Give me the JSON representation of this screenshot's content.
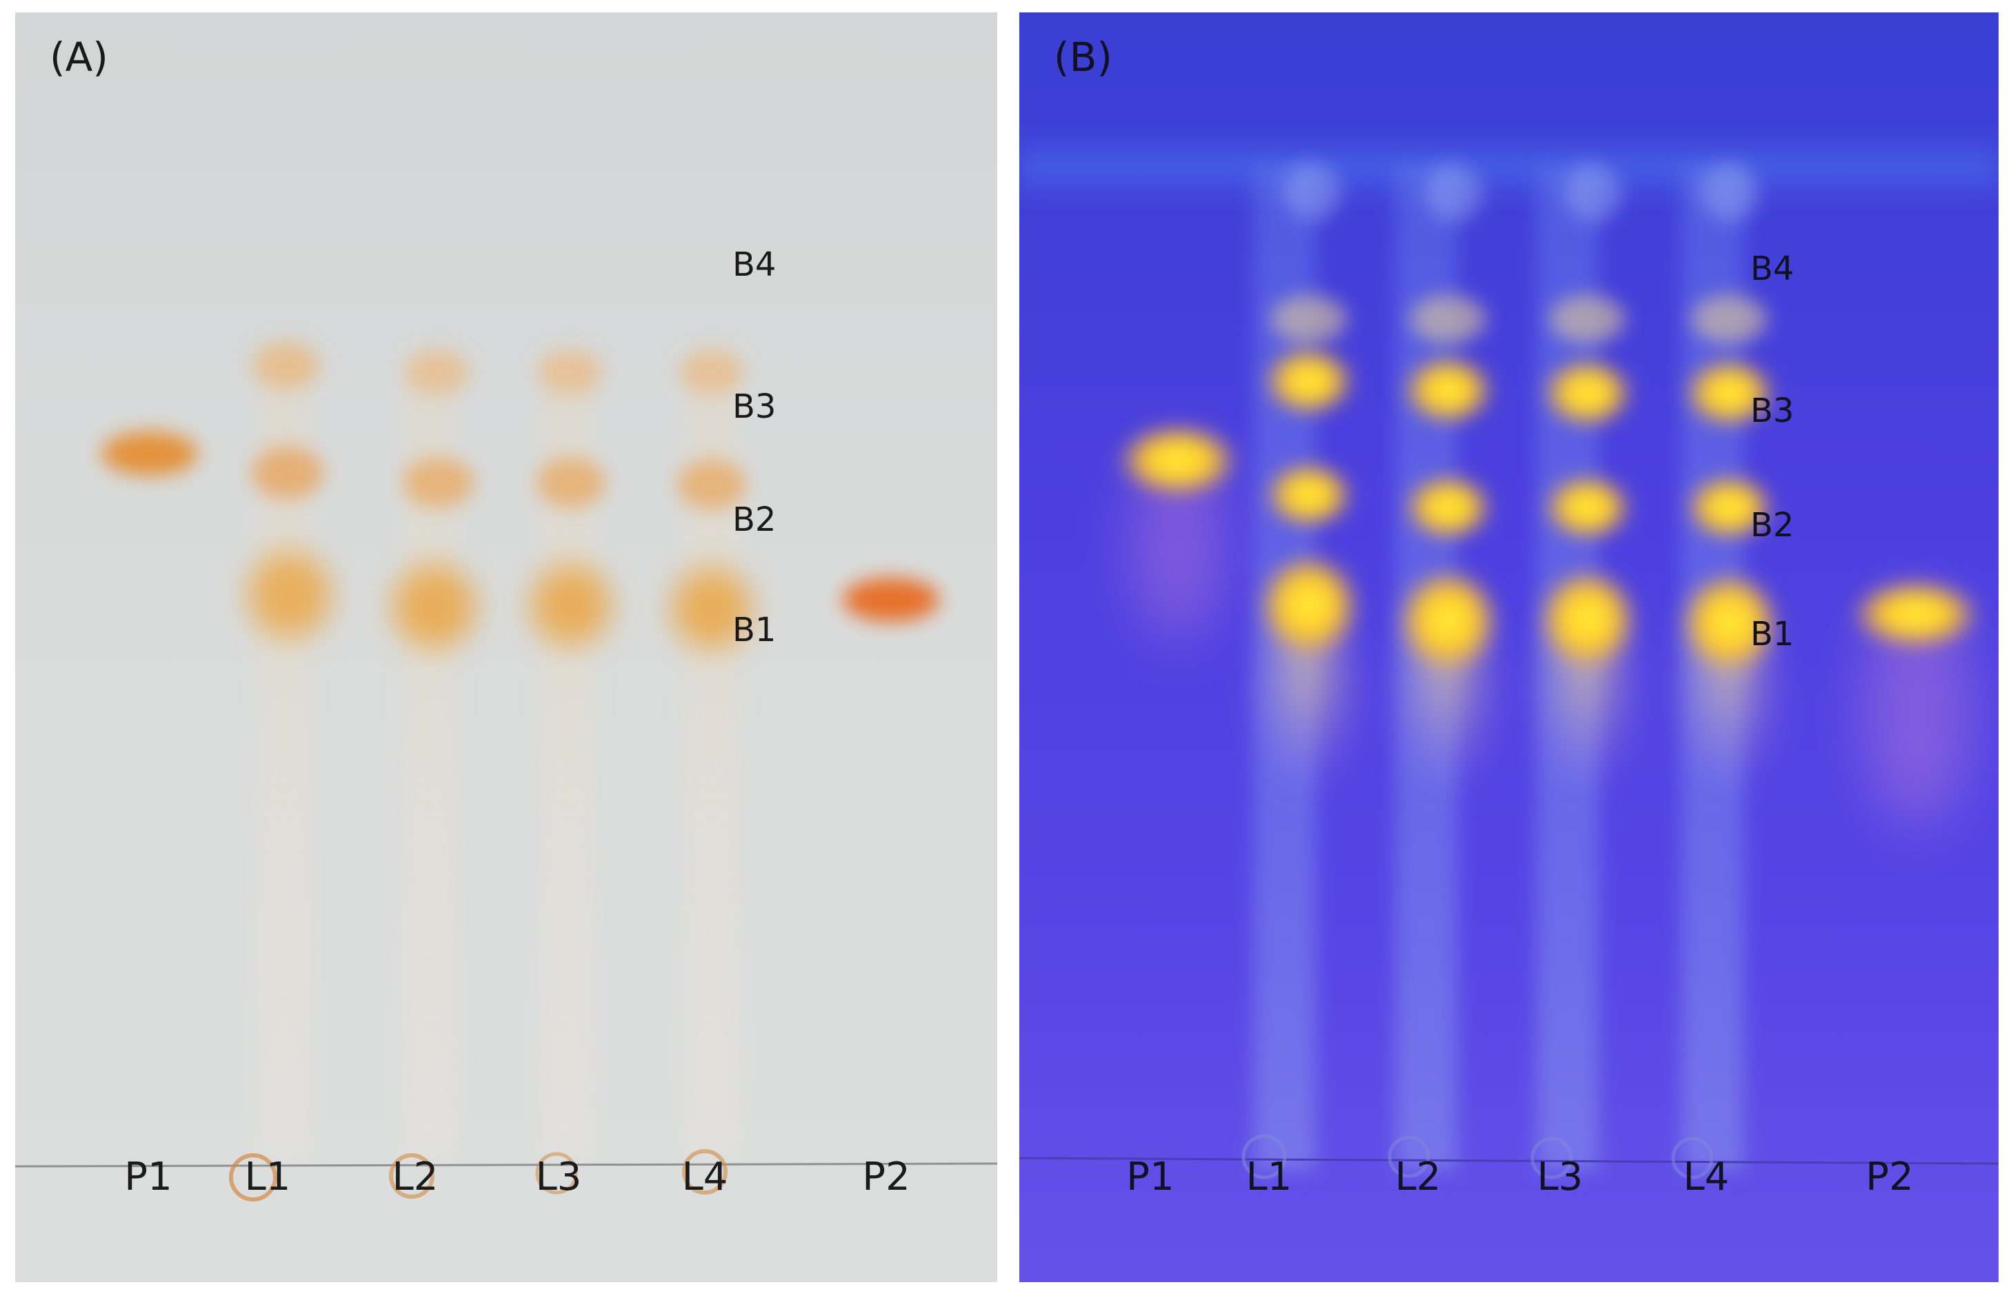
{
  "panels": [
    {
      "id": "A",
      "title": "(A)",
      "lanes": [
        "P1",
        "L1",
        "L2",
        "L3",
        "L4",
        "P2"
      ],
      "bands": [
        "B4",
        "B3",
        "B2",
        "B1"
      ],
      "colors": {
        "background": "#d8dada",
        "spot": "#e8a040",
        "standard": "#e87a2a"
      }
    },
    {
      "id": "B",
      "title": "(B)",
      "lanes": [
        "P1",
        "L1",
        "L2",
        "L3",
        "L4",
        "P2"
      ],
      "bands": [
        "B4",
        "B3",
        "B2",
        "B1"
      ],
      "colors": {
        "background": "#4e42de",
        "spot": "#ffd21e",
        "standard": "#ffdc2a"
      }
    }
  ]
}
